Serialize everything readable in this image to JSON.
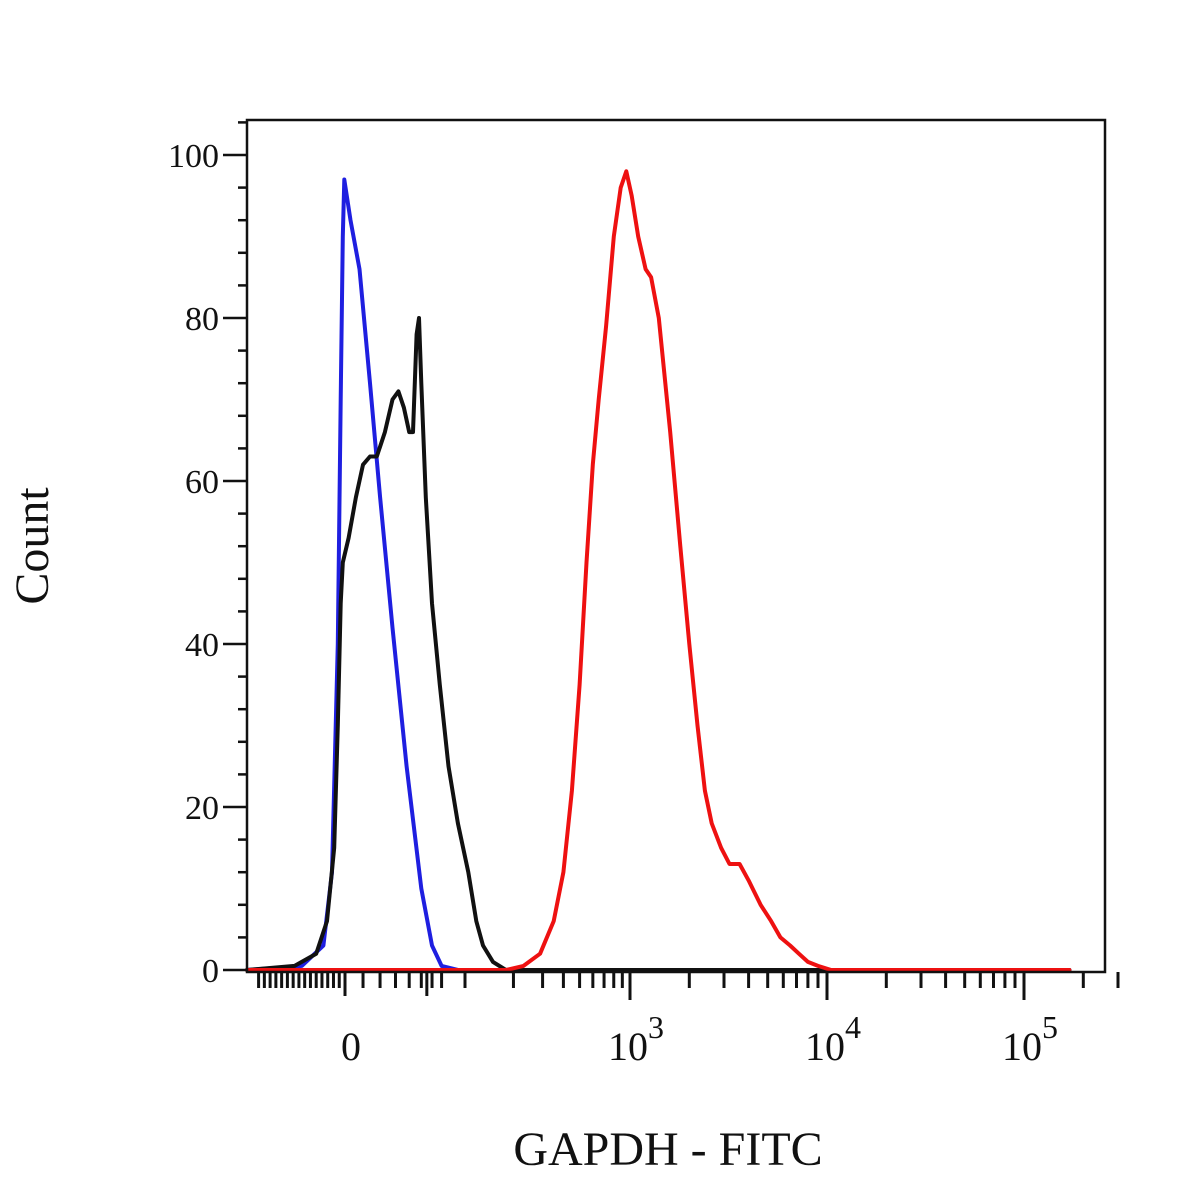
{
  "chart_data": {
    "type": "line",
    "xlabel": "GAPDH - FITC",
    "ylabel": "Count",
    "x_scale": "biexponential",
    "ylim": [
      0,
      105
    ],
    "grid": false,
    "legend": "none",
    "y_ticks": [
      {
        "value": 0,
        "label": "0"
      },
      {
        "value": 20,
        "label": "20"
      },
      {
        "value": 40,
        "label": "40"
      },
      {
        "value": 60,
        "label": "60"
      },
      {
        "value": 80,
        "label": "80"
      },
      {
        "value": 100,
        "label": "100"
      }
    ],
    "x_ticks": [
      {
        "value": 0,
        "base": "0",
        "exp": ""
      },
      {
        "value": 1000,
        "base": "10",
        "exp": "3"
      },
      {
        "value": 10000,
        "base": "10",
        "exp": "4"
      },
      {
        "value": 100000,
        "base": "10",
        "exp": "5"
      }
    ],
    "series": [
      {
        "color": "#1f1fe0",
        "points": [
          [
            -150,
            0
          ],
          [
            -60,
            0.5
          ],
          [
            -30,
            3
          ],
          [
            -18,
            12
          ],
          [
            -10,
            40
          ],
          [
            -6,
            70
          ],
          [
            -3,
            90
          ],
          [
            -1,
            97
          ],
          [
            3,
            92
          ],
          [
            8,
            86
          ],
          [
            14,
            72
          ],
          [
            20,
            58
          ],
          [
            28,
            42
          ],
          [
            38,
            25
          ],
          [
            50,
            10
          ],
          [
            60,
            3
          ],
          [
            70,
            0.5
          ],
          [
            90,
            0
          ],
          [
            1000,
            0
          ],
          [
            10000,
            0
          ],
          [
            170000,
            0
          ]
        ]
      },
      {
        "color": "#111111",
        "points": [
          [
            -150,
            0
          ],
          [
            -70,
            0.5
          ],
          [
            -40,
            2
          ],
          [
            -25,
            6
          ],
          [
            -15,
            15
          ],
          [
            -10,
            30
          ],
          [
            -6,
            45
          ],
          [
            -3,
            50
          ],
          [
            2,
            53
          ],
          [
            6,
            58
          ],
          [
            10,
            62
          ],
          [
            14,
            63
          ],
          [
            18,
            63
          ],
          [
            23,
            66
          ],
          [
            28,
            70
          ],
          [
            32,
            71
          ],
          [
            36,
            69
          ],
          [
            40,
            66
          ],
          [
            43,
            66
          ],
          [
            46,
            78
          ],
          [
            48,
            80
          ],
          [
            50,
            72
          ],
          [
            54,
            58
          ],
          [
            60,
            45
          ],
          [
            68,
            35
          ],
          [
            78,
            25
          ],
          [
            90,
            18
          ],
          [
            105,
            12
          ],
          [
            118,
            6
          ],
          [
            130,
            3
          ],
          [
            150,
            1
          ],
          [
            180,
            0
          ],
          [
            1000,
            0
          ],
          [
            10000,
            0
          ],
          [
            170000,
            0
          ]
        ]
      },
      {
        "color": "#ee1111",
        "points": [
          [
            -150,
            0
          ],
          [
            180,
            0
          ],
          [
            230,
            0.5
          ],
          [
            290,
            2
          ],
          [
            350,
            6
          ],
          [
            400,
            12
          ],
          [
            450,
            22
          ],
          [
            500,
            35
          ],
          [
            550,
            50
          ],
          [
            600,
            62
          ],
          [
            650,
            70
          ],
          [
            720,
            79
          ],
          [
            800,
            90
          ],
          [
            880,
            96
          ],
          [
            950,
            98
          ],
          [
            1020,
            95
          ],
          [
            1100,
            90
          ],
          [
            1200,
            86
          ],
          [
            1280,
            85
          ],
          [
            1400,
            80
          ],
          [
            1600,
            66
          ],
          [
            1800,
            52
          ],
          [
            2000,
            40
          ],
          [
            2200,
            30
          ],
          [
            2400,
            22
          ],
          [
            2600,
            18
          ],
          [
            2900,
            15
          ],
          [
            3200,
            13
          ],
          [
            3600,
            13
          ],
          [
            4000,
            11
          ],
          [
            4600,
            8
          ],
          [
            5200,
            6
          ],
          [
            5800,
            4
          ],
          [
            6500,
            3
          ],
          [
            7200,
            2
          ],
          [
            8000,
            1
          ],
          [
            9000,
            0.5
          ],
          [
            10500,
            0
          ],
          [
            30000,
            0
          ],
          [
            170000,
            0
          ]
        ]
      }
    ]
  }
}
